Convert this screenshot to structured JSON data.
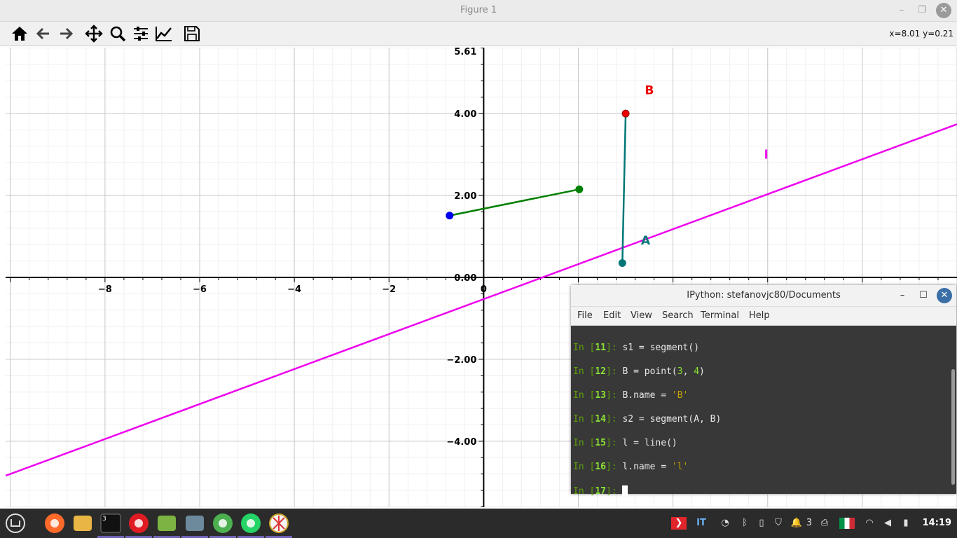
{
  "window": {
    "title": "Figure 1",
    "minimize_glyph": "–",
    "maximize_glyph": "❐",
    "close_glyph": "✕"
  },
  "toolbar": {
    "icons": [
      "home-icon",
      "back-icon",
      "forward-icon",
      "pan-icon",
      "zoom-icon",
      "configure-subplots-icon",
      "edit-axis-icon",
      "save-icon"
    ],
    "coords": "x=8.01 y=0.21"
  },
  "chart_data": {
    "type": "scatter",
    "xlim": [
      -10.1,
      10
    ],
    "ylim": [
      -5.61,
      5.61
    ],
    "grid": true,
    "x_ticks": [
      -8,
      -6,
      -4,
      -2,
      0
    ],
    "x_tick_labels": [
      "−8",
      "−6",
      "−4",
      "−2",
      "0"
    ],
    "y_ticks": [
      5.61,
      4,
      2,
      0,
      -2,
      -4
    ],
    "y_tick_labels": [
      "5.61",
      "4.00",
      "2.00",
      "0.00",
      "−2.00",
      "−4.00"
    ],
    "points": [
      {
        "x": 3,
        "y": 4,
        "color": "#ee0000",
        "label": "B"
      },
      {
        "x": 2.93,
        "y": 0.35,
        "color": "#007777",
        "label": "A"
      },
      {
        "x": -0.72,
        "y": 1.51,
        "color": "#0000ee",
        "label": ""
      },
      {
        "x": 2.02,
        "y": 2.15,
        "color": "#008000",
        "label": ""
      }
    ],
    "segments": [
      {
        "x": [
          -0.72,
          2.02
        ],
        "y": [
          1.51,
          2.15
        ],
        "color": "#008000"
      },
      {
        "x": [
          2.93,
          3
        ],
        "y": [
          0.35,
          4
        ],
        "color": "#007777"
      }
    ],
    "line": {
      "label": "l",
      "color": "#ee00ee",
      "slope": 0.427,
      "intercept": -0.53
    },
    "labels": [
      {
        "text": "B",
        "x": 3.5,
        "y": 4.47,
        "color": "#ee0000"
      },
      {
        "text": "A",
        "x": 3.42,
        "y": 0.8,
        "color": "#007777"
      },
      {
        "text": "l",
        "x": 5.97,
        "y": 2.9,
        "color": "#ee00ee"
      }
    ]
  },
  "terminal": {
    "title": "IPython: stefanovjc80/Documents",
    "minimize_glyph": "–",
    "maximize_glyph": "☐",
    "close_glyph": "✕",
    "menu": [
      "File",
      "Edit",
      "View",
      "Search",
      "Terminal",
      "Help"
    ],
    "prompt_in": "In [",
    "prompt_close": "]: ",
    "lines": [
      {
        "n": "11",
        "code": [
          {
            "t": "s1 = segment()",
            "c": ""
          }
        ]
      },
      {
        "n": "12",
        "code": [
          {
            "t": "B = point(",
            "c": ""
          },
          {
            "t": "3",
            "c": "g"
          },
          {
            "t": ", ",
            "c": ""
          },
          {
            "t": "4",
            "c": "g"
          },
          {
            "t": ")",
            "c": ""
          }
        ]
      },
      {
        "n": "13",
        "code": [
          {
            "t": "B.name = ",
            "c": ""
          },
          {
            "t": "'B'",
            "c": "s"
          }
        ]
      },
      {
        "n": "14",
        "code": [
          {
            "t": "s2 = segment(A, B)",
            "c": ""
          }
        ]
      },
      {
        "n": "15",
        "code": [
          {
            "t": "l = line()",
            "c": ""
          }
        ]
      },
      {
        "n": "16",
        "code": [
          {
            "t": "l.name = ",
            "c": ""
          },
          {
            "t": "'l'",
            "c": "s"
          }
        ]
      },
      {
        "n": "17",
        "code": []
      }
    ]
  },
  "taskbar": {
    "apps": [
      {
        "name": "mint-menu-icon",
        "color": "#3a3a3a"
      },
      {
        "name": "firefox-icon",
        "color": "#ff6a2b"
      },
      {
        "name": "files-icon",
        "color": "#e9b545"
      },
      {
        "name": "terminal-icon",
        "color": "#111111"
      },
      {
        "name": "opera-icon",
        "color": "#e01b24"
      },
      {
        "name": "mintinstall-icon",
        "color": "#7cb342"
      },
      {
        "name": "screen-icon",
        "color": "#6c8a9c"
      },
      {
        "name": "chrome-icon",
        "color": "#4caf50"
      },
      {
        "name": "whatsapp-icon",
        "color": "#25d366"
      },
      {
        "name": "inkscape-icon",
        "color": "#f5f5f5"
      }
    ],
    "terminal_badge": "3",
    "tray": {
      "lang": "IT",
      "notif_count": "3",
      "clock": "14:19",
      "icons": [
        "anydesk-icon",
        "whatsapp-tray-icon",
        "bluetooth-icon",
        "clipboard-icon",
        "shield-icon",
        "notifications-icon",
        "printer-icon",
        "flag-italy-icon",
        "wifi-icon",
        "volume-icon",
        "battery-icon"
      ]
    }
  }
}
